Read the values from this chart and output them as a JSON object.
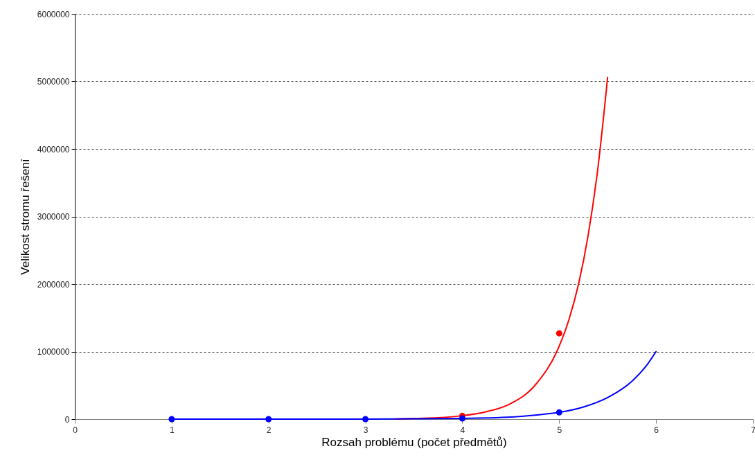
{
  "chart_data": {
    "type": "scatter",
    "xlabel": "Rozsah problému (počet předmětů)",
    "ylabel": "Velikost stromu řešení",
    "xlim": [
      0,
      7
    ],
    "xticks": [
      0,
      1,
      2,
      3,
      4,
      5,
      6,
      7
    ],
    "ylim": [
      0,
      6000000
    ],
    "yticks": [
      0,
      1000000,
      2000000,
      3000000,
      4000000,
      5000000,
      6000000
    ],
    "grid": "y",
    "marker": "circle",
    "series": [
      {
        "color": "#ff0000",
        "x": [
          4,
          5
        ],
        "values": [
          50000,
          1270000
        ]
      },
      {
        "color": "#0000ff",
        "x": [
          1,
          2,
          3,
          4,
          5
        ],
        "values": [
          0,
          0,
          0,
          10000,
          100000
        ]
      },
      {
        "type": "line",
        "marker": "none",
        "color": "#ff0000",
        "x": [
          3.3,
          3.5,
          3.75,
          4,
          4.25,
          4.5,
          4.75,
          5,
          5.1,
          5.2,
          5.3,
          5.4,
          5.5
        ],
        "values": [
          0,
          10000,
          20000,
          50000,
          110000,
          230000,
          500000,
          1080000,
          1470000,
          2000000,
          2730000,
          3720000,
          5060000
        ]
      },
      {
        "type": "line",
        "marker": "none",
        "color": "#0000ff",
        "x": [
          1,
          2,
          3,
          4,
          4.5,
          4.75,
          5,
          5.25,
          5.5,
          5.75,
          5.9,
          6
        ],
        "values": [
          0,
          0,
          0,
          10000,
          30000,
          60000,
          100000,
          180000,
          320000,
          560000,
          790000,
          1000000
        ]
      }
    ]
  }
}
